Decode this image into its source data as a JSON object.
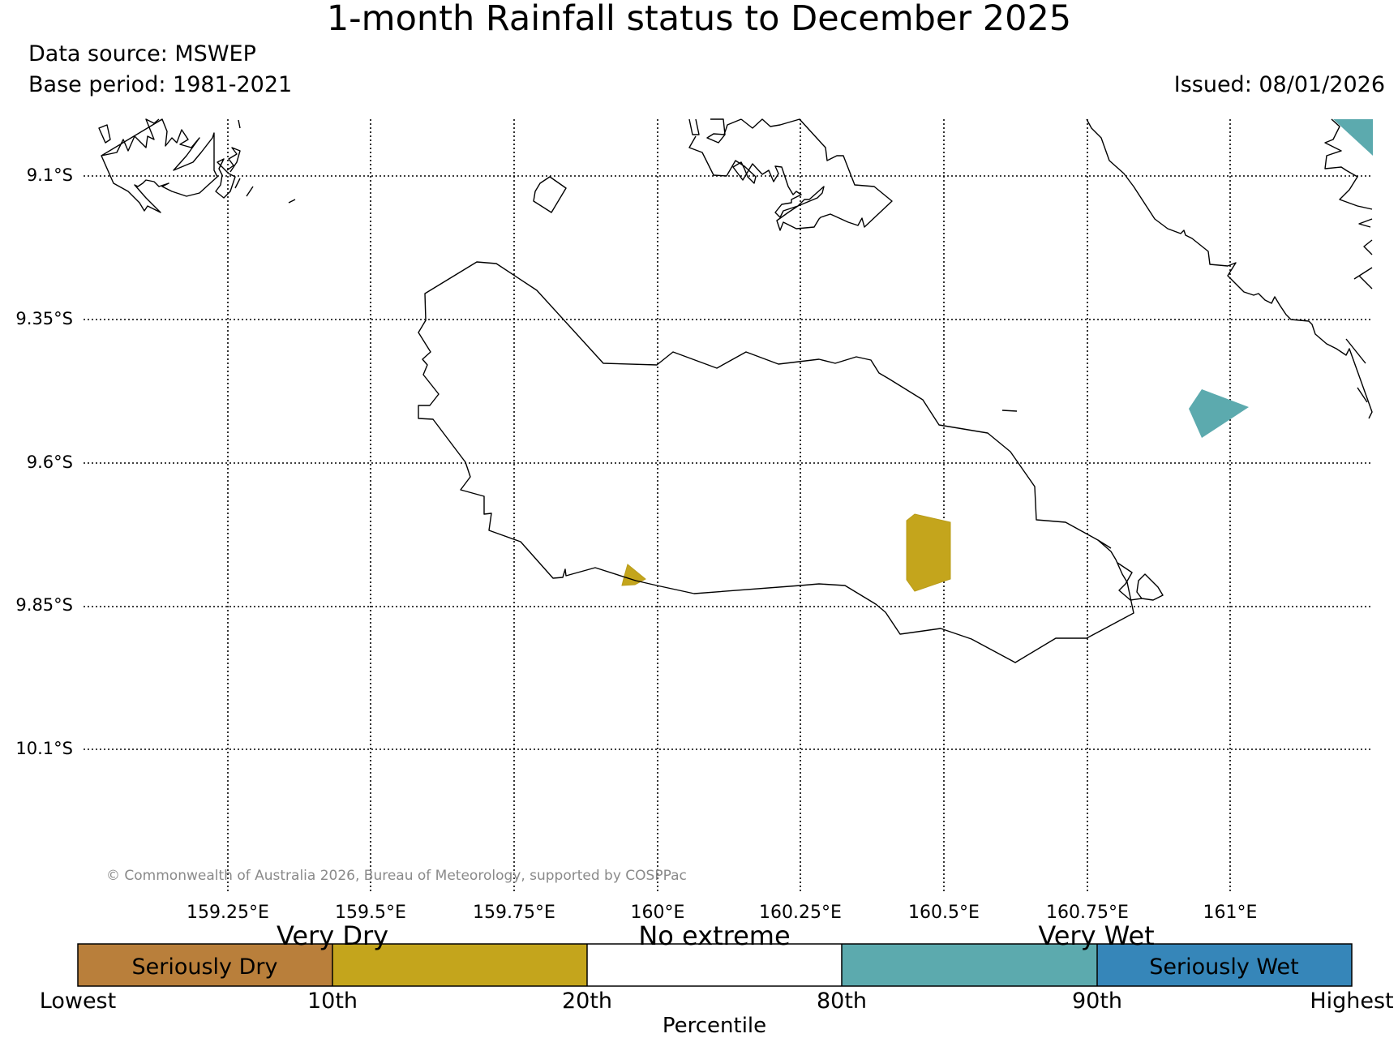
{
  "header": {
    "title": "1-month Rainfall status to December 2025",
    "source": "Data source: MSWEP",
    "base_period": "Base period: 1981-2021",
    "issued": "Issued: 08/01/2026"
  },
  "map": {
    "lat_labels": [
      "9.1°S",
      "9.35°S",
      "9.6°S",
      "9.85°S",
      "10.1°S"
    ],
    "lon_labels": [
      "159.25°E",
      "159.5°E",
      "159.75°E",
      "160°E",
      "160.25°E",
      "160.5°E",
      "160.75°E",
      "161°E"
    ],
    "copyright": "© Commonwealth of Australia 2026, Bureau of Meteorology, supported by COSPPac"
  },
  "legend": {
    "groups": [
      "Very Dry",
      "No extreme",
      "Very Wet"
    ],
    "inner_labels": [
      "Seriously Dry",
      "Seriously Wet"
    ],
    "ticks": [
      "Lowest",
      "10th",
      "20th",
      "80th",
      "90th",
      "Highest"
    ],
    "xlabel": "Percentile"
  },
  "colors": {
    "seriously_dry": "#b97f3b",
    "very_dry": "#c4a51c",
    "no_extreme": "#ffffff",
    "very_wet": "#5caaae",
    "seriously_wet": "#3686b9"
  }
}
